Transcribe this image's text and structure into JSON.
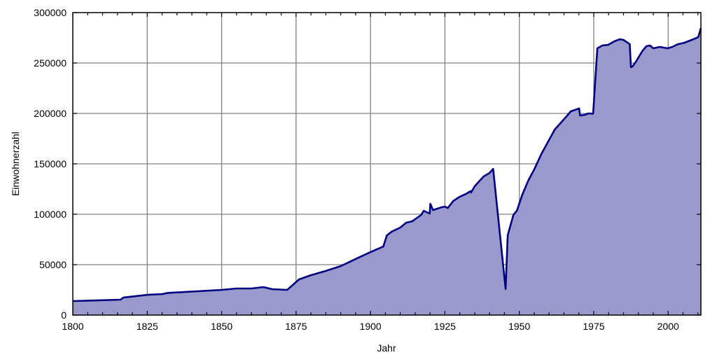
{
  "chart_data": {
    "type": "area",
    "title": "",
    "xlabel": "Jahr",
    "ylabel": "Einwohnerzahl",
    "xlim": [
      1800,
      2011
    ],
    "ylim": [
      0,
      300000
    ],
    "grid": true,
    "x_ticks": [
      1800,
      1825,
      1850,
      1875,
      1900,
      1925,
      1950,
      1975,
      2000
    ],
    "y_ticks": [
      0,
      50000,
      100000,
      150000,
      200000,
      250000,
      300000
    ],
    "fill_color": "#9999cc",
    "line_color": "#000080",
    "points": [
      [
        1800,
        13900
      ],
      [
        1816,
        15300
      ],
      [
        1817,
        17400
      ],
      [
        1825,
        20100
      ],
      [
        1830,
        20800
      ],
      [
        1832,
        22000
      ],
      [
        1850,
        25000
      ],
      [
        1855,
        26400
      ],
      [
        1860,
        26400
      ],
      [
        1864,
        27800
      ],
      [
        1867,
        25700
      ],
      [
        1872,
        25000
      ],
      [
        1876,
        35400
      ],
      [
        1880,
        39600
      ],
      [
        1885,
        43800
      ],
      [
        1890,
        48600
      ],
      [
        1895,
        55600
      ],
      [
        1900,
        62500
      ],
      [
        1904.3,
        68000
      ],
      [
        1905.5,
        79000
      ],
      [
        1907,
        82600
      ],
      [
        1910,
        86800
      ],
      [
        1912,
        91700
      ],
      [
        1914,
        93000
      ],
      [
        1917,
        99300
      ],
      [
        1917.9,
        103400
      ],
      [
        1919.9,
        100700
      ],
      [
        1920.1,
        110400
      ],
      [
        1921,
        104200
      ],
      [
        1924,
        107000
      ],
      [
        1925,
        107600
      ],
      [
        1926,
        106200
      ],
      [
        1927.8,
        113200
      ],
      [
        1930,
        117400
      ],
      [
        1932,
        120100
      ],
      [
        1933.6,
        122900
      ],
      [
        1933.8,
        121500
      ],
      [
        1935,
        127800
      ],
      [
        1938,
        137500
      ],
      [
        1940,
        141000
      ],
      [
        1941.2,
        145100
      ],
      [
        1945.4,
        25900
      ],
      [
        1946.1,
        79200
      ],
      [
        1948,
        99300
      ],
      [
        1949.2,
        103700
      ],
      [
        1951,
        119400
      ],
      [
        1953,
        133300
      ],
      [
        1955,
        144400
      ],
      [
        1957.4,
        159700
      ],
      [
        1961.9,
        184000
      ],
      [
        1966.1,
        197900
      ],
      [
        1967.3,
        202100
      ],
      [
        1970.1,
        204900
      ],
      [
        1970.4,
        197900
      ],
      [
        1972,
        198600
      ],
      [
        1973.2,
        200000
      ],
      [
        1974.8,
        199800
      ],
      [
        1976.2,
        264600
      ],
      [
        1977.9,
        267400
      ],
      [
        1979.8,
        268000
      ],
      [
        1981.9,
        271500
      ],
      [
        1983.8,
        273600
      ],
      [
        1985,
        272900
      ],
      [
        1987.1,
        268700
      ],
      [
        1987.5,
        245800
      ],
      [
        1988,
        246500
      ],
      [
        1989.2,
        251400
      ],
      [
        1991.3,
        261800
      ],
      [
        1992.7,
        266700
      ],
      [
        1993.9,
        267400
      ],
      [
        1995,
        264600
      ],
      [
        1997.2,
        266000
      ],
      [
        1999.8,
        264600
      ],
      [
        2001.4,
        266000
      ],
      [
        2003.3,
        268700
      ],
      [
        2005.4,
        270100
      ],
      [
        2008.5,
        273600
      ],
      [
        2010.1,
        275700
      ],
      [
        2011,
        284700
      ]
    ]
  }
}
